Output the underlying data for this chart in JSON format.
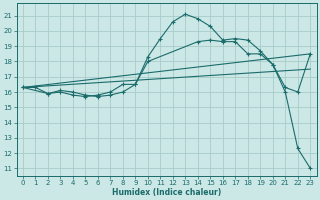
{
  "xlabel": "Humidex (Indice chaleur)",
  "bg_color": "#cce8e6",
  "grid_color": "#a8ccca",
  "line_color": "#1a6b6b",
  "xlim": [
    -0.5,
    23.5
  ],
  "ylim": [
    10.5,
    21.8
  ],
  "yticks": [
    11,
    12,
    13,
    14,
    15,
    16,
    17,
    18,
    19,
    20,
    21
  ],
  "xticks": [
    0,
    1,
    2,
    3,
    4,
    5,
    6,
    7,
    8,
    9,
    10,
    11,
    12,
    13,
    14,
    15,
    16,
    17,
    18,
    19,
    20,
    21,
    22,
    23
  ],
  "line1_x": [
    0,
    1,
    2,
    3,
    4,
    5,
    6,
    7,
    8,
    9,
    10,
    11,
    12,
    13,
    14,
    15,
    16,
    17,
    18,
    19,
    20,
    21,
    22,
    23
  ],
  "line1_y": [
    16.3,
    16.3,
    15.9,
    16.1,
    16.0,
    15.8,
    15.7,
    15.8,
    16.0,
    16.5,
    18.3,
    19.5,
    20.6,
    21.1,
    20.8,
    20.3,
    19.4,
    19.5,
    19.4,
    18.7,
    17.8,
    16.0,
    12.3,
    11.0
  ],
  "line2_x": [
    0,
    2,
    3,
    4,
    5,
    6,
    7,
    8,
    9,
    10,
    14,
    15,
    16,
    17,
    18,
    19,
    20,
    21,
    22,
    23
  ],
  "line2_y": [
    16.3,
    15.9,
    16.0,
    15.8,
    15.7,
    15.8,
    16.0,
    16.5,
    16.5,
    18.0,
    19.3,
    19.4,
    19.3,
    19.3,
    18.5,
    18.5,
    17.8,
    16.3,
    16.0,
    18.5
  ],
  "line3_x": [
    0,
    23
  ],
  "line3_y": [
    16.3,
    18.5
  ],
  "line4_x": [
    0,
    23
  ],
  "line4_y": [
    16.3,
    17.5
  ]
}
